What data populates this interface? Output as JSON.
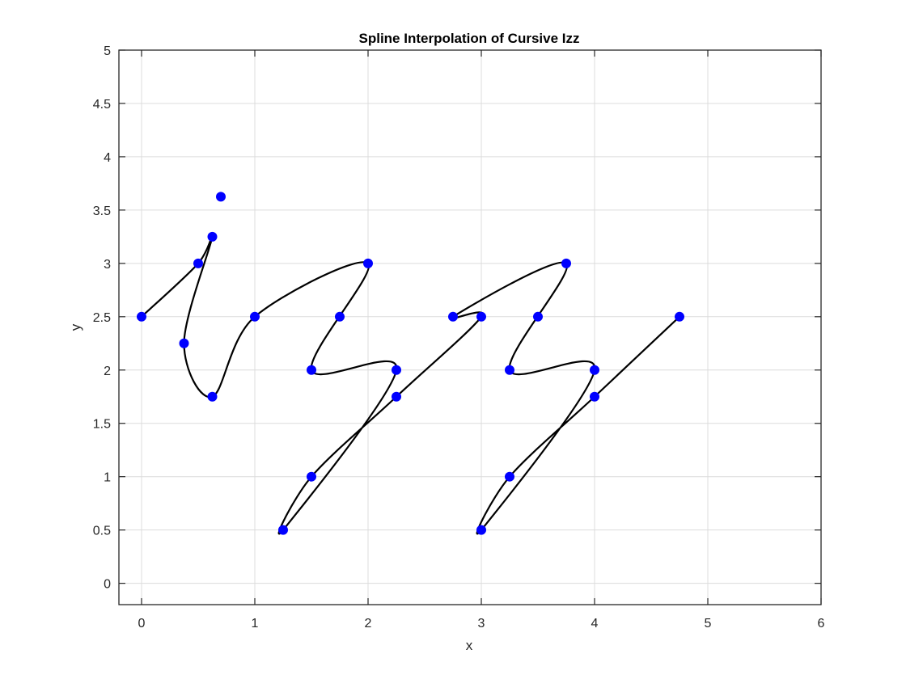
{
  "chart_data": {
    "type": "line",
    "title": "Spline Interpolation of Cursive Izz",
    "xlabel": "x",
    "ylabel": "y",
    "xlim": [
      -0.2,
      6
    ],
    "ylim": [
      -0.2,
      5
    ],
    "xticks": [
      0,
      1,
      2,
      3,
      4,
      5,
      6
    ],
    "yticks": [
      0,
      0.5,
      1,
      1.5,
      2,
      2.5,
      3,
      3.5,
      4,
      4.5,
      5
    ],
    "xtick_labels": [
      "0",
      "1",
      "2",
      "3",
      "4",
      "5",
      "6"
    ],
    "ytick_labels": [
      "0",
      "0.5",
      "1",
      "1.5",
      "2",
      "2.5",
      "3",
      "3.5",
      "4",
      "4.5",
      "5"
    ],
    "grid": true,
    "box": true,
    "series": [
      {
        "kind": "spline-curve",
        "color": "#000000",
        "x": [
          0,
          0.5,
          0.625,
          0.375,
          0.625,
          1,
          2,
          1.5,
          2.25,
          1.25,
          1.5,
          2.25,
          3,
          2.75,
          3.75,
          3.25,
          4,
          3,
          3.25,
          4,
          4.75
        ],
        "y": [
          2.5,
          3,
          3.25,
          2.25,
          1.75,
          2.5,
          3,
          2,
          2,
          0.5,
          1,
          1.75,
          2.5,
          2.5,
          3,
          2,
          2,
          0.5,
          1,
          1.75,
          2.5
        ]
      },
      {
        "kind": "data-points",
        "color": "#0000ff",
        "x": [
          0,
          0.5,
          0.625,
          0.375,
          0.625,
          1,
          2,
          1.75,
          1.5,
          2.25,
          1.25,
          1.5,
          2.25,
          3,
          2.75,
          3.75,
          3.5,
          3.25,
          4,
          3,
          3.25,
          4,
          4.75,
          0.7
        ],
        "y": [
          2.5,
          3,
          3.25,
          2.25,
          1.75,
          2.5,
          3,
          2.5,
          2,
          2,
          0.5,
          1,
          1.75,
          2.5,
          2.5,
          3,
          2.5,
          2,
          2,
          0.5,
          1,
          1.75,
          2.5,
          3.625
        ]
      }
    ]
  }
}
